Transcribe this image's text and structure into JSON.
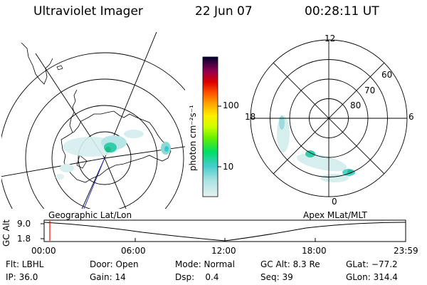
{
  "header": {
    "title": "Ultraviolet Imager",
    "date": "22 Jun 07",
    "time": "00:28:11 UT"
  },
  "left_map": {
    "caption": "Geographic Lat/Lon"
  },
  "right_map": {
    "caption": "Apex MLat/MLT",
    "mlt_labels": {
      "top": "12",
      "left": "18",
      "right": "6",
      "bottom": "0"
    },
    "mlat_labels": [
      "60",
      "70",
      "80"
    ]
  },
  "colorbar": {
    "unit_label": "photon cm⁻²s⁻¹",
    "tick_labels": [
      "100",
      "10"
    ],
    "colors": [
      "#000033",
      "#4b0050",
      "#800060",
      "#c00030",
      "#ff0000",
      "#ff6600",
      "#ffaa00",
      "#ffee00",
      "#ccff00",
      "#66ee00",
      "#00dd66",
      "#33ccbb",
      "#88dddd",
      "#d8efef"
    ]
  },
  "altitude_panel": {
    "ylabel": "GC Alt",
    "y_ticks": [
      "9.0",
      "1.8"
    ],
    "x_ticks": [
      "00:00",
      "06:00",
      "12:00",
      "18:00",
      "23:59"
    ],
    "marker_color": "#ff0000"
  },
  "info": {
    "flt": "Flt: LBHL",
    "ip": "IP: 36.0",
    "door": "Door: Open",
    "gain": "Gain: 14",
    "mode": "Mode: Normal",
    "dsp": "Dsp:    0.4",
    "gcalt": "GC Alt: 8.3 Re",
    "seq": "Seq: 39",
    "glat": "GLat: −77.2",
    "glon": "GLon: 314.4"
  }
}
